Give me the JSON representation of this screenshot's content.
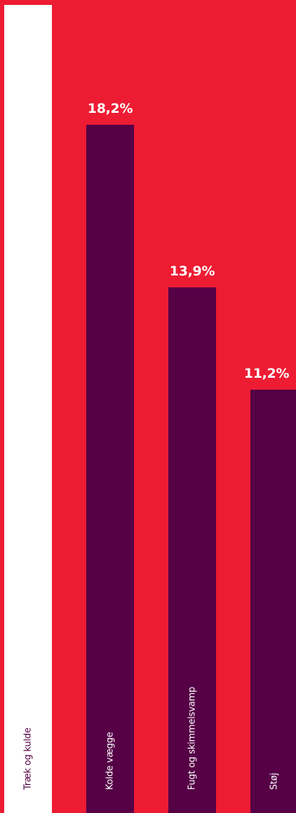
{
  "colors": {
    "background": "#ed1c33",
    "highlight_bar": "#ffffff",
    "bar": "#560046",
    "label_on_highlight": "#560046",
    "label_on_bar": "#ffffff",
    "value_label": "#ffffff"
  },
  "chart_data": {
    "type": "bar",
    "orientation": "vertical",
    "categories": [
      "Træk og kulde",
      "Kolde vægge",
      "Fugt og skimmelsvamp",
      "Støj"
    ],
    "values": [
      null,
      18.2,
      13.9,
      11.2
    ],
    "value_labels": [
      "",
      "18,2%",
      "13,9%",
      "11,2%"
    ],
    "highlighted_category": "Træk og kulde",
    "unit": "%",
    "title": "",
    "xlabel": "",
    "ylabel": "",
    "grid": false,
    "legend": "none"
  }
}
